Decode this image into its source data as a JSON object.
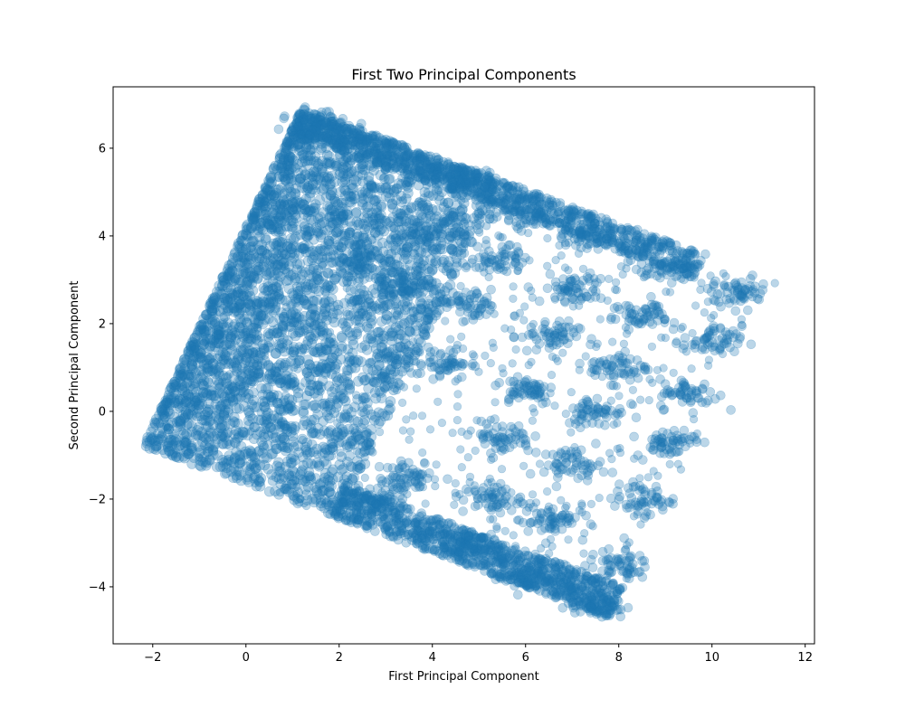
{
  "chart_data": {
    "type": "scatter",
    "title": "First Two Principal Components",
    "xlabel": "First Principal Component",
    "ylabel": "Second Principal Component",
    "xlim": [
      -2.85,
      12.2
    ],
    "ylim": [
      -5.3,
      7.4
    ],
    "x_ticks": [
      -2,
      0,
      2,
      4,
      6,
      8,
      10,
      12
    ],
    "y_ticks": [
      -4,
      -2,
      0,
      2,
      4,
      6
    ],
    "x_tick_labels": [
      "−2",
      "0",
      "2",
      "4",
      "6",
      "8",
      "10",
      "12"
    ],
    "y_tick_labels": [
      "−4",
      "−2",
      "0",
      "2",
      "4",
      "6"
    ],
    "grid": false,
    "legend": "none",
    "marker_color": "#1f77b4",
    "marker_alpha": 0.3,
    "region_corners": [
      [
        -2.2,
        -0.8
      ],
      [
        1.2,
        6.9
      ],
      [
        11.4,
        3.0
      ],
      [
        7.8,
        -4.7
      ]
    ],
    "clusters": [
      {
        "x": 1.6,
        "y": 6.5
      },
      {
        "x": 4.8,
        "y": 5.2
      },
      {
        "x": 5.8,
        "y": 4.5
      },
      {
        "x": 3.8,
        "y": 4.1
      },
      {
        "x": 7.5,
        "y": 4.0
      },
      {
        "x": 2.5,
        "y": 3.5
      },
      {
        "x": 5.4,
        "y": 3.5
      },
      {
        "x": 9.0,
        "y": 3.3
      },
      {
        "x": 3.4,
        "y": 2.9
      },
      {
        "x": 7.0,
        "y": 2.8
      },
      {
        "x": 10.6,
        "y": 2.7
      },
      {
        "x": 4.8,
        "y": 2.4
      },
      {
        "x": 8.5,
        "y": 2.2
      },
      {
        "x": 6.5,
        "y": 1.7
      },
      {
        "x": 10.0,
        "y": 1.6
      },
      {
        "x": 4.2,
        "y": 1.1
      },
      {
        "x": 8.0,
        "y": 1.0
      },
      {
        "x": 6.0,
        "y": 0.5
      },
      {
        "x": 9.5,
        "y": 0.4
      },
      {
        "x": 7.5,
        "y": 0.0
      },
      {
        "x": 5.5,
        "y": -0.6
      },
      {
        "x": 9.0,
        "y": -0.7
      },
      {
        "x": 7.0,
        "y": -1.2
      },
      {
        "x": 5.3,
        "y": -2.0
      },
      {
        "x": 8.5,
        "y": -2.0
      },
      {
        "x": 6.5,
        "y": -2.5
      },
      {
        "x": 4.7,
        "y": -3.0
      },
      {
        "x": 8.0,
        "y": -3.5
      },
      {
        "x": 6.0,
        "y": -3.8
      },
      {
        "x": 7.5,
        "y": -4.4
      },
      {
        "x": 2.8,
        "y": -2.0
      },
      {
        "x": 3.5,
        "y": -1.5
      }
    ]
  }
}
